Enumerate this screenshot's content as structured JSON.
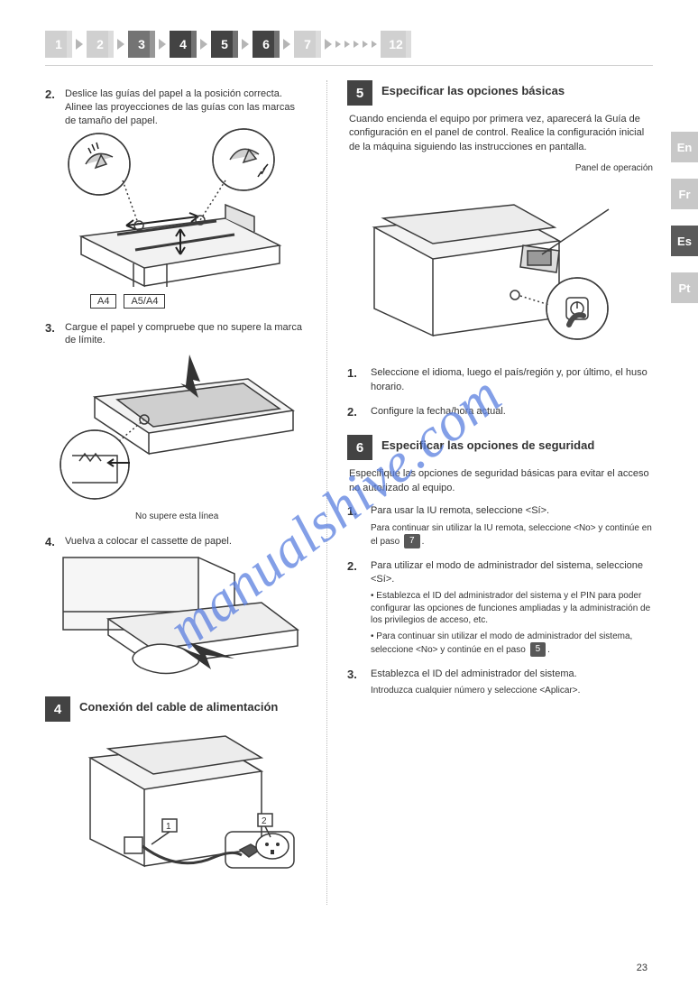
{
  "nav": {
    "steps": [
      {
        "n": "1",
        "bg": "#d0d0d0"
      },
      {
        "n": "2",
        "bg": "#d0d0d0"
      },
      {
        "n": "3",
        "bg": "#747474"
      },
      {
        "n": "4",
        "bg": "#434343"
      },
      {
        "n": "5",
        "bg": "#434343"
      },
      {
        "n": "6",
        "bg": "#434343"
      },
      {
        "n": "7",
        "bg": "#d0d0d0"
      }
    ],
    "tail_chevrons": 5,
    "tail": {
      "n": "12",
      "bg": "#d0d0d0"
    }
  },
  "sidetabs": [
    {
      "label": "En",
      "bg": "#c8c8c8"
    },
    {
      "label": "Fr",
      "bg": "#c8c8c8"
    },
    {
      "label": "Es",
      "bg": "#5a5a5a"
    },
    {
      "label": "Pt",
      "bg": "#c8c8c8"
    }
  ],
  "left": {
    "sub2": {
      "n": "2.",
      "t": "Deslice las guías del papel a la posición correcta. Alinee las proyecciones de las guías con las marcas de tamaño del papel."
    },
    "ab_a": "A4",
    "ab_b": "A5/A4",
    "sub3": {
      "n": "3.",
      "t": "Cargue el papel y compruebe que no supere la marca de límite."
    },
    "limit_caption": "No supere esta línea",
    "sub4": {
      "n": "4.",
      "t": "Vuelva a colocar el cassette de papel."
    },
    "sec4": {
      "num": "4",
      "title": "Conexión del cable de alimentación",
      "label1": "1",
      "label2": "2"
    }
  },
  "right": {
    "sec5": {
      "num": "5",
      "title": "Especificar las opciones básicas",
      "body": "Cuando encienda el equipo por primera vez, aparecerá la Guía de configuración en el panel de control. Realice la configuración inicial de la máquina siguiendo las instrucciones en pantalla.",
      "panel_label": "Panel de operación",
      "list": [
        {
          "n": "1.",
          "t": "Seleccione el idioma, luego el país/región y, por último, el huso horario."
        },
        {
          "n": "2.",
          "t": "Configure la fecha/hora actual."
        }
      ]
    },
    "sec6": {
      "num": "6",
      "title": "Especificar las opciones de seguridad",
      "body_a": "Especifique las opciones de seguridad básicas para evitar el acceso no autorizado al equipo.",
      "steps": [
        {
          "n": "1.",
          "t": "Para usar la IU remota, seleccione <Sí>.",
          "note": "Para continuar sin utilizar la IU remota, seleccione <No> y continúe en el paso 7 .",
          "pill": "7"
        },
        {
          "n": "2.",
          "t": "Para utilizar el modo de administrador del sistema, seleccione <Sí>.",
          "bullets": [
            "Establezca el ID del administrador del sistema y el PIN para poder configurar las opciones de funciones ampliadas y la administración de los privilegios de acceso, etc.",
            "Para continuar sin utilizar el modo de administrador del sistema, seleccione <No> y continúe en el paso 5."
          ]
        },
        {
          "n": "3.",
          "t": "Establezca el ID del administrador del sistema.",
          "note": "Introduzca cualquier número y seleccione <Aplicar>."
        }
      ]
    }
  },
  "watermark": "manualshive.com",
  "page_number": "23",
  "colors": {
    "stroke": "#3a3a3a",
    "light": "#e3e3e3",
    "mid": "#bfbfbf",
    "dark": "#6a6a6a"
  }
}
